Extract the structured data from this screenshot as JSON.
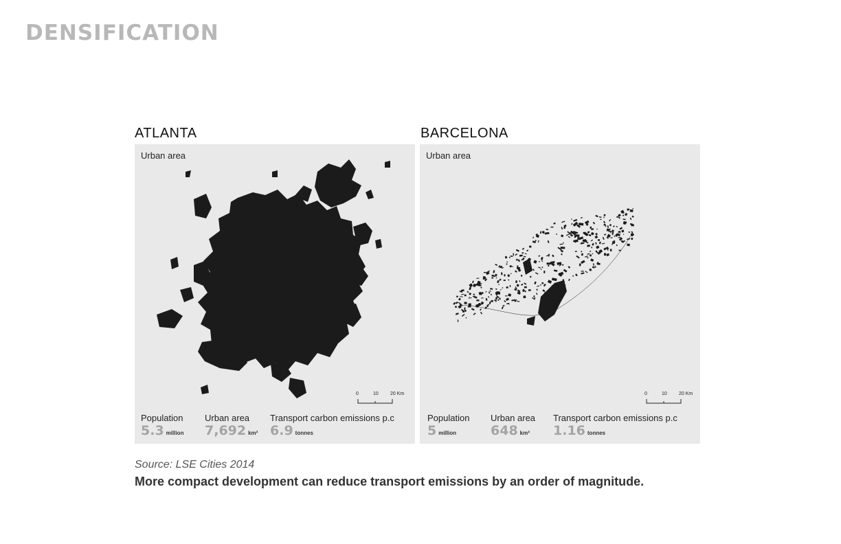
{
  "page": {
    "title": "DENSIFICATION"
  },
  "cities": [
    {
      "name": "ATLANTA",
      "panel_label": "Urban area",
      "scale_ticks": [
        "0",
        "10",
        "20 Km"
      ],
      "stats": [
        {
          "label": "Population",
          "value": "5.3",
          "unit": "million"
        },
        {
          "label": "Urban area",
          "value": "7,692",
          "unit": "km²"
        },
        {
          "label": "Transport carbon emissions p.c",
          "value": "6.9",
          "unit": "tonnes"
        }
      ]
    },
    {
      "name": "BARCELONA",
      "panel_label": "Urban area",
      "scale_ticks": [
        "0",
        "10",
        "20 Km"
      ],
      "stats": [
        {
          "label": "Population",
          "value": "5",
          "unit": "million"
        },
        {
          "label": "Urban area",
          "value": "648",
          "unit": "km²"
        },
        {
          "label": "Transport carbon emissions p.c",
          "value": "1.16",
          "unit": "tonnes"
        }
      ]
    }
  ],
  "source": "Source: LSE Cities 2014",
  "caption": "More compact development can reduce transport emissions by an order of magnitude.",
  "colors": {
    "title": "#b8b8b8",
    "panel_bg": "#e9e9e9",
    "urban_fill": "#1b1b1b",
    "stat_value": "#a4a4a4"
  }
}
